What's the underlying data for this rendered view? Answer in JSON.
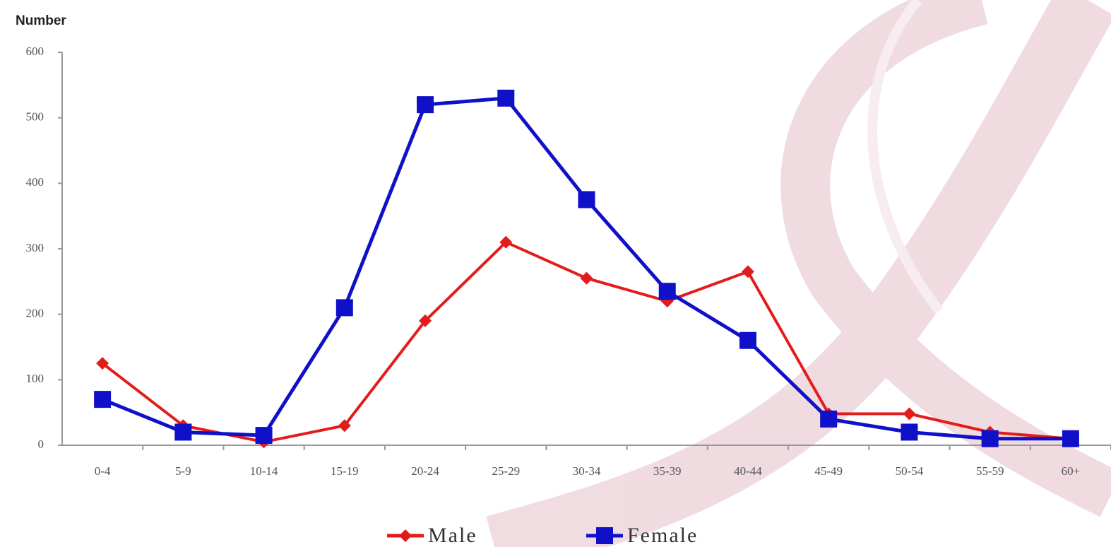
{
  "chart_data": {
    "type": "line",
    "y_label": "Number",
    "categories": [
      "0-4",
      "5-9",
      "10-14",
      "15-19",
      "20-24",
      "25-29",
      "30-34",
      "35-39",
      "40-44",
      "45-49",
      "50-54",
      "55-59",
      "60+"
    ],
    "series": [
      {
        "name": "Male",
        "color": "#e31b1b",
        "marker": "diamond",
        "values": [
          125,
          30,
          5,
          30,
          190,
          310,
          255,
          220,
          265,
          48,
          48,
          20,
          10
        ]
      },
      {
        "name": "Female",
        "color": "#1010c8",
        "marker": "square",
        "values": [
          70,
          20,
          15,
          210,
          520,
          530,
          375,
          235,
          160,
          40,
          20,
          10,
          10
        ]
      }
    ],
    "ylim": [
      0,
      600
    ],
    "yticks": [
      0,
      100,
      200,
      300,
      400,
      500,
      600
    ],
    "grid": false
  }
}
